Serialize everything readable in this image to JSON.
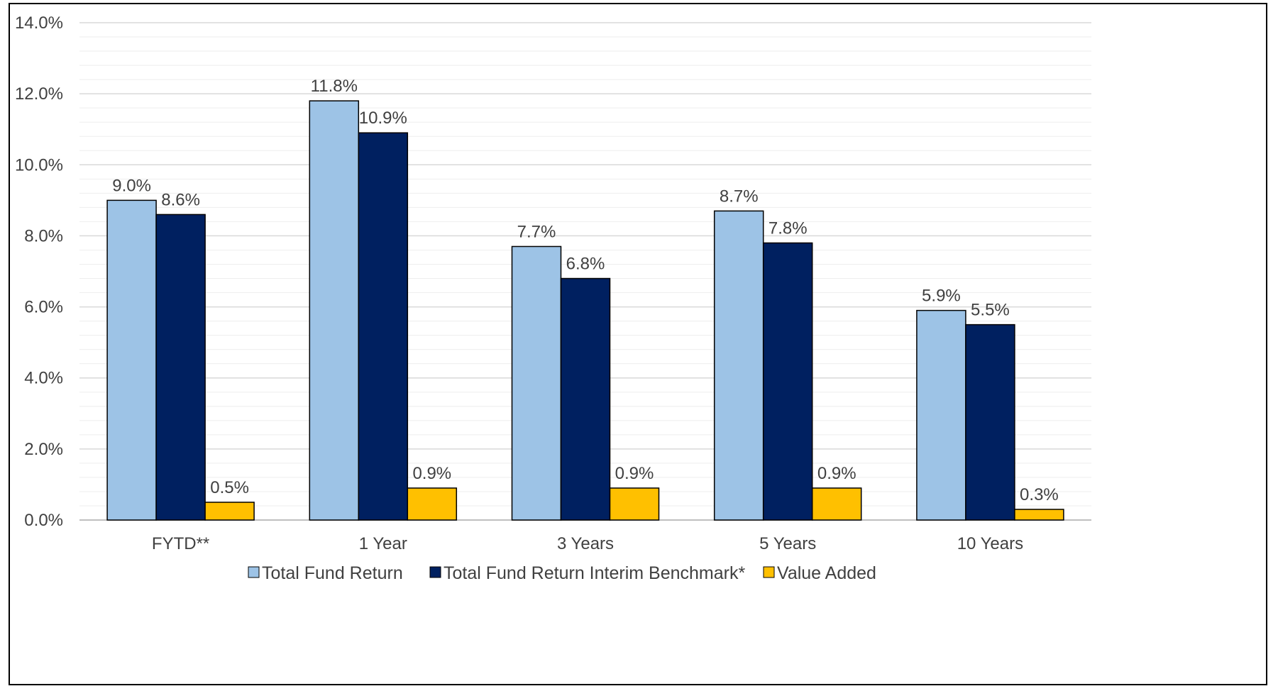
{
  "chart_data": {
    "type": "bar",
    "categories": [
      "FYTD**",
      "1 Year",
      "3 Years",
      "5 Years",
      "10 Years"
    ],
    "series": [
      {
        "name": "Total Fund Return",
        "values": [
          9.0,
          11.8,
          7.7,
          8.7,
          5.9
        ],
        "labels": [
          "9.0%",
          "11.8%",
          "7.7%",
          "8.7%",
          "5.9%"
        ],
        "color": "#9DC3E6"
      },
      {
        "name": "Total Fund Return Interim Benchmark*",
        "values": [
          8.6,
          10.9,
          6.8,
          7.8,
          5.5
        ],
        "labels": [
          "8.6%",
          "10.9%",
          "6.8%",
          "7.8%",
          "5.5%"
        ],
        "color": "#002060"
      },
      {
        "name": "Value Added",
        "values": [
          0.5,
          0.9,
          0.9,
          0.9,
          0.3
        ],
        "labels": [
          "0.5%",
          "0.9%",
          "0.9%",
          "0.9%",
          "0.3%"
        ],
        "color": "#FFC000"
      }
    ],
    "title": "",
    "xlabel": "",
    "ylabel": "",
    "ylim": [
      0,
      14
    ],
    "y_ticks": [
      0,
      2,
      4,
      6,
      8,
      10,
      12,
      14
    ],
    "y_tick_labels": [
      "0.0%",
      "2.0%",
      "4.0%",
      "6.0%",
      "8.0%",
      "10.0%",
      "12.0%",
      "14.0%"
    ],
    "grid": true,
    "minor_grid": true,
    "legend": "bottom",
    "colors": {
      "gridline": "#D9D9D9",
      "minor_gridline": "#EEEEEE",
      "bar_outline": "#000000",
      "text": "#404040"
    }
  }
}
